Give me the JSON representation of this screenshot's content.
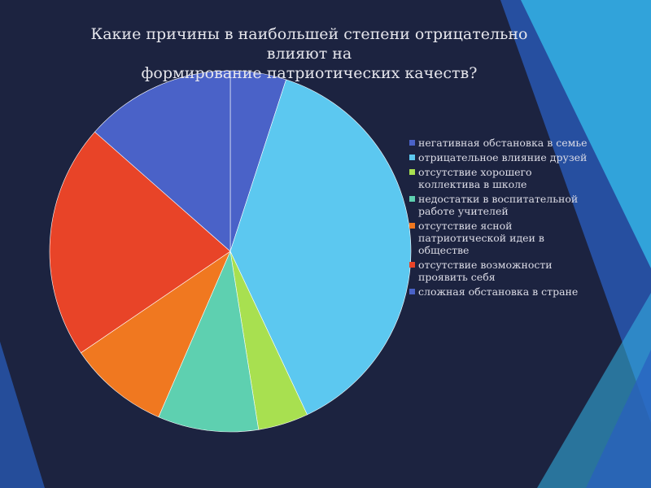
{
  "chart_data": {
    "type": "pie",
    "title_lines": [
      "Какие причины в наибольшей степени отрицательно влияют на",
      "формирование патриотических качеств?"
    ],
    "categories": [
      "негативная обстановка в семье",
      "отрицательное влияние друзей",
      "отсутствие хорошего коллектива в школе",
      "недостатки в воспитательной работе учителей",
      "отсутствие ясной патриотической идеи в обществе",
      "отсутствие возможности проявить себя",
      "сложная обстановка в стране"
    ],
    "values": [
      5,
      38,
      4.5,
      9,
      9,
      21,
      13.5
    ],
    "colors": [
      "#4a62c8",
      "#5cc8f0",
      "#a8e050",
      "#5ed0b0",
      "#f07820",
      "#e84428",
      "#4a62c8"
    ],
    "legend_position": "right"
  },
  "theme": {
    "background": "#1c2340",
    "accent_light": "#35b8e8",
    "accent_dark": "#2a5fc0"
  }
}
